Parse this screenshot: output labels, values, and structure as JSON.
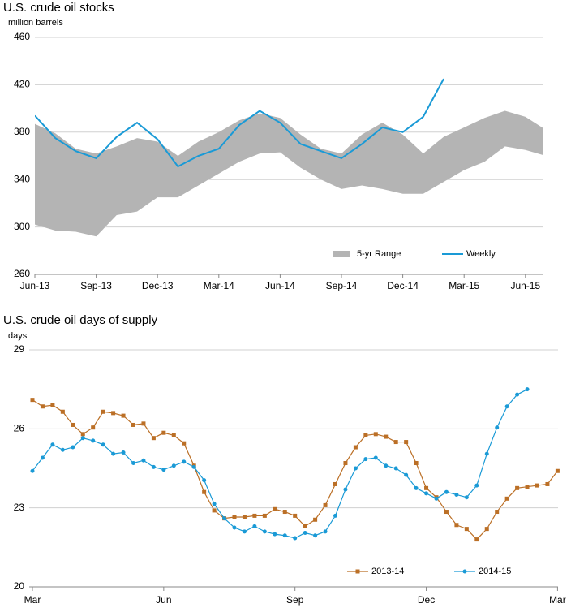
{
  "chart_data": [
    {
      "type": "line",
      "title": "U.S. crude oil stocks",
      "y_label": "million barrels",
      "categories": [
        "Jun-13",
        null,
        null,
        "Sep-13",
        null,
        null,
        "Dec-13",
        null,
        null,
        "Mar-14",
        null,
        null,
        "Jun-14",
        null,
        null,
        "Sep-14",
        null,
        null,
        "Dec-14",
        null,
        null,
        "Mar-15",
        null,
        null,
        "Jun-15",
        null
      ],
      "ylim": [
        260,
        460
      ],
      "yticks": [
        260,
        300,
        340,
        380,
        420,
        460
      ],
      "grid": true,
      "series": [
        {
          "name": "5-yr Range",
          "color": "#b4b4b4",
          "low": [
            302,
            297,
            296,
            292,
            310,
            313,
            325,
            325,
            335,
            345,
            355,
            362,
            363,
            350,
            340,
            332,
            335,
            332,
            328,
            328,
            338,
            348,
            355,
            368,
            365,
            360
          ],
          "high": [
            387,
            379,
            366,
            362,
            368,
            375,
            372,
            360,
            372,
            380,
            390,
            396,
            392,
            378,
            366,
            362,
            378,
            388,
            378,
            362,
            376,
            384,
            392,
            398,
            393,
            382
          ]
        },
        {
          "name": "Weekly",
          "color": "#1a9ad6",
          "values": [
            394,
            375,
            364,
            358,
            376,
            388,
            374,
            351,
            360,
            366,
            386,
            398,
            388,
            370,
            364,
            358,
            370,
            384,
            380,
            393,
            425,
            null,
            null,
            null,
            null,
            null
          ]
        }
      ]
    },
    {
      "type": "line",
      "title": "U.S. crude oil days of supply",
      "y_label": "days",
      "categories": [
        "Mar",
        null,
        null,
        null,
        null,
        null,
        null,
        null,
        null,
        null,
        null,
        null,
        null,
        "Jun",
        null,
        null,
        null,
        null,
        null,
        null,
        null,
        null,
        null,
        null,
        null,
        null,
        "Sep",
        null,
        null,
        null,
        null,
        null,
        null,
        null,
        null,
        null,
        null,
        null,
        null,
        "Dec",
        null,
        null,
        null,
        null,
        null,
        null,
        null,
        null,
        null,
        null,
        null,
        null,
        "Mar"
      ],
      "ylim": [
        20,
        29
      ],
      "yticks": [
        20,
        23,
        26,
        29
      ],
      "grid": true,
      "series": [
        {
          "name": "2013-14",
          "color": "#bb6f26",
          "marker": "square",
          "values": [
            27.1,
            26.85,
            26.9,
            26.65,
            26.15,
            25.8,
            26.05,
            26.65,
            26.6,
            26.5,
            26.15,
            26.2,
            25.65,
            25.85,
            25.75,
            25.45,
            24.6,
            23.6,
            22.9,
            22.6,
            22.65,
            22.65,
            22.7,
            22.7,
            22.95,
            22.85,
            22.7,
            22.3,
            22.55,
            23.1,
            23.9,
            24.7,
            25.3,
            25.75,
            25.8,
            25.7,
            25.5,
            25.5,
            24.7,
            23.75,
            23.4,
            22.85,
            22.35,
            22.2,
            21.8,
            22.2,
            22.85,
            23.35,
            23.75,
            23.8,
            23.85,
            23.9,
            24.4
          ]
        },
        {
          "name": "2014-15",
          "color": "#1a9ad6",
          "marker": "circle",
          "values": [
            24.4,
            24.9,
            25.4,
            25.2,
            25.3,
            25.65,
            25.55,
            25.4,
            25.05,
            25.1,
            24.7,
            24.8,
            24.55,
            24.45,
            24.6,
            24.75,
            24.55,
            24.05,
            23.15,
            22.6,
            22.25,
            22.1,
            22.3,
            22.1,
            22.0,
            21.95,
            21.85,
            22.05,
            21.95,
            22.1,
            22.7,
            23.7,
            24.5,
            24.85,
            24.9,
            24.6,
            24.5,
            24.25,
            23.75,
            23.55,
            23.35,
            23.6,
            23.5,
            23.4,
            23.85,
            25.05,
            26.05,
            26.85,
            27.3,
            27.5,
            null,
            null,
            null
          ]
        }
      ]
    }
  ]
}
